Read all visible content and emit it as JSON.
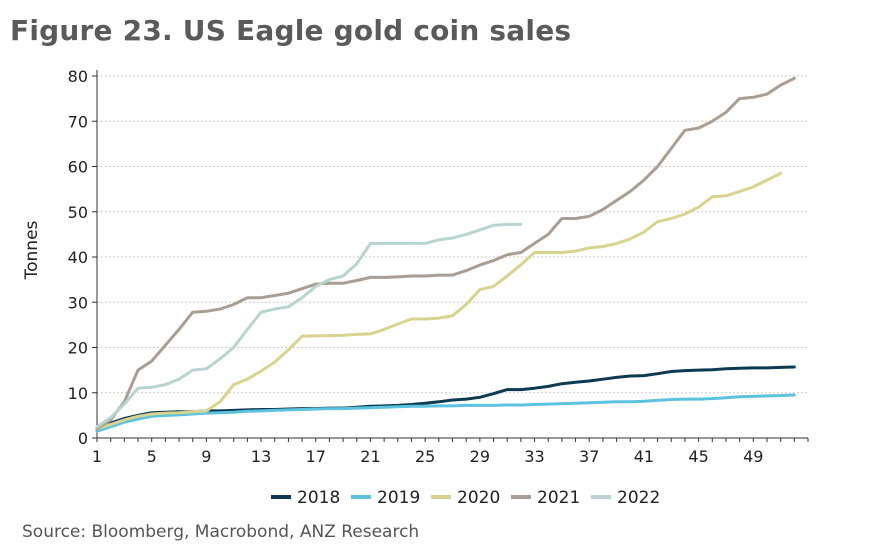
{
  "figure": {
    "title": "Figure 23. US Eagle gold coin sales",
    "source": "Source:  Bloomberg, Macrobond, ANZ Research"
  },
  "chart_data": {
    "type": "line",
    "title": "Figure 23. US Eagle gold coin sales",
    "xlabel": "",
    "ylabel": "Tonnes",
    "xlim": [
      1,
      53
    ],
    "ylim": [
      0,
      80
    ],
    "xticks": [
      1,
      5,
      9,
      13,
      17,
      21,
      25,
      29,
      33,
      37,
      41,
      45,
      49
    ],
    "yticks": [
      0,
      10,
      20,
      30,
      40,
      50,
      60,
      70,
      80
    ],
    "grid": "horizontal dotted",
    "legend": "bottom",
    "series": [
      {
        "name": "2018",
        "color": "#0d3a52",
        "x": [
          1,
          2,
          3,
          4,
          5,
          6,
          7,
          8,
          9,
          10,
          11,
          12,
          13,
          14,
          15,
          16,
          17,
          18,
          19,
          20,
          21,
          22,
          23,
          24,
          25,
          26,
          27,
          28,
          29,
          30,
          31,
          32,
          33,
          34,
          35,
          36,
          37,
          38,
          39,
          40,
          41,
          42,
          43,
          44,
          45,
          46,
          47,
          48,
          49,
          50,
          51,
          52
        ],
        "values": [
          2,
          3.3,
          4.3,
          5,
          5.6,
          5.7,
          5.8,
          5.8,
          6,
          6,
          6.1,
          6.2,
          6.3,
          6.3,
          6.4,
          6.5,
          6.5,
          6.6,
          6.6,
          6.8,
          7,
          7.1,
          7.2,
          7.4,
          7.7,
          8,
          8.4,
          8.6,
          9,
          9.8,
          10.7,
          10.7,
          11,
          11.4,
          12,
          12.3,
          12.6,
          13,
          13.4,
          13.7,
          13.8,
          14.2,
          14.7,
          14.9,
          15,
          15.1,
          15.3,
          15.4,
          15.5,
          15.5,
          15.6,
          15.7
        ]
      },
      {
        "name": "2019",
        "color": "#5bc3e0",
        "x": [
          1,
          2,
          3,
          4,
          5,
          6,
          7,
          8,
          9,
          10,
          11,
          12,
          13,
          14,
          15,
          16,
          17,
          18,
          19,
          20,
          21,
          22,
          23,
          24,
          25,
          26,
          27,
          28,
          29,
          30,
          31,
          32,
          33,
          34,
          35,
          36,
          37,
          38,
          39,
          40,
          41,
          42,
          43,
          44,
          45,
          46,
          47,
          48,
          49,
          50,
          51,
          52
        ],
        "values": [
          1.5,
          2.5,
          3.5,
          4.2,
          4.8,
          5,
          5.1,
          5.3,
          5.5,
          5.6,
          5.7,
          5.9,
          6,
          6.1,
          6.2,
          6.3,
          6.4,
          6.5,
          6.5,
          6.6,
          6.7,
          6.8,
          6.9,
          7,
          7,
          7.1,
          7.1,
          7.2,
          7.2,
          7.2,
          7.3,
          7.3,
          7.4,
          7.5,
          7.6,
          7.7,
          7.8,
          7.9,
          8,
          8,
          8.1,
          8.3,
          8.5,
          8.6,
          8.6,
          8.7,
          8.9,
          9.1,
          9.2,
          9.3,
          9.4,
          9.5
        ]
      },
      {
        "name": "2020",
        "color": "#d8d48f",
        "x": [
          1,
          2,
          3,
          4,
          5,
          6,
          7,
          8,
          9,
          10,
          11,
          12,
          13,
          14,
          15,
          16,
          17,
          18,
          19,
          20,
          21,
          22,
          23,
          24,
          25,
          26,
          27,
          28,
          29,
          30,
          31,
          32,
          33,
          34,
          35,
          36,
          37,
          38,
          39,
          40,
          41,
          42,
          43,
          44,
          45,
          46,
          47,
          48,
          49,
          50,
          51
        ],
        "values": [
          2,
          3,
          4,
          4.8,
          5.3,
          5.5,
          5.6,
          5.8,
          6,
          8,
          11.8,
          13,
          14.8,
          16.8,
          19.5,
          22.5,
          22.6,
          22.6,
          22.7,
          22.9,
          23,
          24,
          25.2,
          26.3,
          26.3,
          26.5,
          27,
          29.5,
          32.8,
          33.5,
          35.8,
          38.3,
          41,
          41,
          41,
          41.3,
          42,
          42.3,
          43,
          44,
          45.5,
          47.8,
          48.5,
          49.5,
          51,
          53.3,
          53.5,
          54.5,
          55.5,
          57,
          58.5
        ]
      },
      {
        "name": "2021",
        "color": "#a89e94",
        "x": [
          1,
          2,
          3,
          4,
          5,
          6,
          7,
          8,
          9,
          10,
          11,
          12,
          13,
          14,
          15,
          16,
          17,
          18,
          19,
          20,
          21,
          22,
          23,
          24,
          25,
          26,
          27,
          28,
          29,
          30,
          31,
          32,
          33,
          34,
          35,
          36,
          37,
          38,
          39,
          40,
          41,
          42,
          43,
          44,
          45,
          46,
          47,
          48,
          49,
          50,
          51,
          52
        ],
        "values": [
          2,
          4,
          8,
          15,
          17,
          20.5,
          24,
          27.8,
          28,
          28.5,
          29.5,
          31,
          31,
          31.5,
          32,
          33,
          34,
          34.2,
          34.2,
          34.8,
          35.5,
          35.5,
          35.6,
          35.8,
          35.8,
          36,
          36,
          37,
          38.2,
          39.2,
          40.5,
          41,
          43,
          45,
          48.5,
          48.5,
          49,
          50.5,
          52.5,
          54.5,
          57,
          60,
          64,
          68,
          68.5,
          70,
          72,
          75,
          75.3,
          76,
          78,
          79.5
        ]
      },
      {
        "name": "2022",
        "color": "#b8d4d0",
        "x": [
          1,
          2,
          3,
          4,
          5,
          6,
          7,
          8,
          9,
          10,
          11,
          12,
          13,
          14,
          15,
          16,
          17,
          18,
          19,
          20,
          21,
          22,
          23,
          24,
          25,
          26,
          27,
          28,
          29,
          30,
          31,
          32
        ],
        "values": [
          2.5,
          4.5,
          7.5,
          11,
          11.2,
          11.8,
          13,
          15,
          15.3,
          17.5,
          20,
          24,
          27.8,
          28.5,
          29,
          31,
          33.5,
          35,
          35.8,
          38.5,
          43,
          43,
          43,
          43,
          43,
          43.8,
          44.2,
          45,
          46,
          47,
          47.2,
          47.2
        ]
      }
    ]
  }
}
